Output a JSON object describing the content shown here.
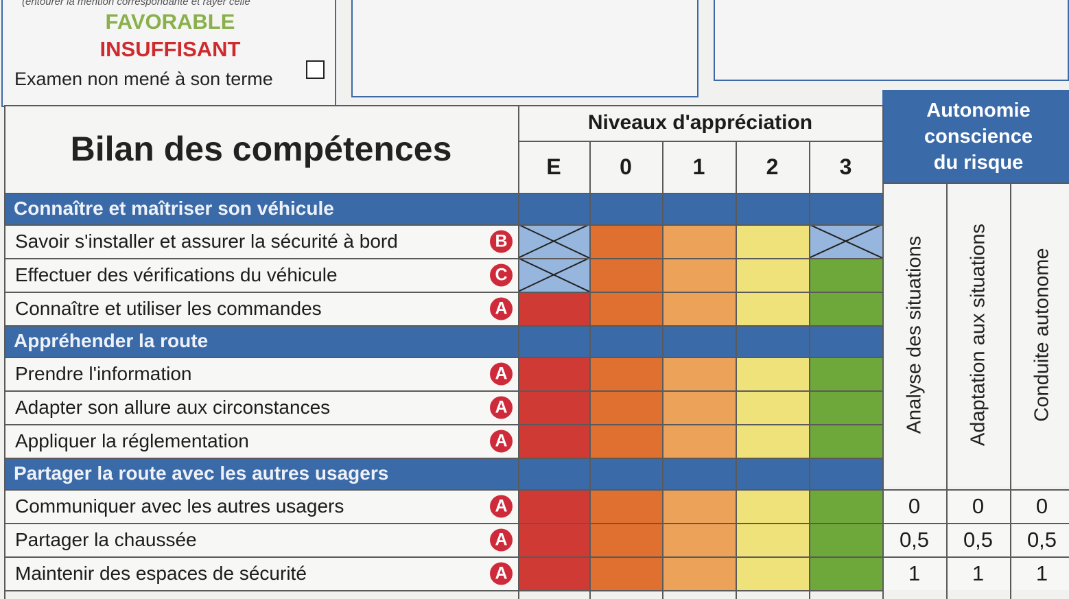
{
  "result_box": {
    "instruction": "(entourer la mention correspondante et rayer celle",
    "favorable": "FAVORABLE",
    "insufficient": "INSUFFISANT",
    "not_finished": "Examen non mené à son terme"
  },
  "colors": {
    "header_blue": "#3b6aa8",
    "level_E": "#cf3a35",
    "level_0": "#e0702f",
    "level_1": "#eda25a",
    "level_2": "#f0e27a",
    "level_3": "#6fa83a",
    "not_applicable": "#97b6dd",
    "badge_red": "#cf2a3a",
    "favorable_green": "#8ab04a",
    "insufficient_red": "#cf2a2d"
  },
  "table": {
    "title": "Bilan des compétences",
    "levels_header": "Niveaux d'appréciation",
    "levels": [
      "E",
      "0",
      "1",
      "2",
      "3"
    ],
    "autonomy_header": [
      "Autonomie",
      "conscience",
      "du risque"
    ],
    "autonomy_columns": [
      "Analyse des situations",
      "Adaptation aux situations",
      "Conduite autonome"
    ],
    "score_rows": [
      [
        "0",
        "0",
        "0"
      ],
      [
        "0,5",
        "0,5",
        "0,5"
      ],
      [
        "1",
        "1",
        "1"
      ]
    ],
    "sections": [
      {
        "title": "Connaître et maîtriser son véhicule",
        "rows": [
          {
            "label": "Savoir s'installer et assurer la sécurité à bord",
            "badge": "B",
            "not_applicable_levels": [
              "E",
              "3"
            ]
          },
          {
            "label": "Effectuer des vérifications du véhicule",
            "badge": "C",
            "not_applicable_levels": [
              "E"
            ]
          },
          {
            "label": "Connaître et utiliser les commandes",
            "badge": "A",
            "not_applicable_levels": []
          }
        ]
      },
      {
        "title": "Appréhender la route",
        "rows": [
          {
            "label": "Prendre l'information",
            "badge": "A",
            "not_applicable_levels": []
          },
          {
            "label": "Adapter son allure aux circonstances",
            "badge": "A",
            "not_applicable_levels": []
          },
          {
            "label": "Appliquer la réglementation",
            "badge": "A",
            "not_applicable_levels": []
          }
        ]
      },
      {
        "title": "Partager la route avec les autres usagers",
        "rows": [
          {
            "label": "Communiquer avec les autres usagers",
            "badge": "A",
            "not_applicable_levels": []
          },
          {
            "label": "Partager la chaussée",
            "badge": "A",
            "not_applicable_levels": []
          },
          {
            "label": "Maintenir des espaces de sécurité",
            "badge": "A",
            "not_applicable_levels": []
          }
        ]
      }
    ]
  }
}
